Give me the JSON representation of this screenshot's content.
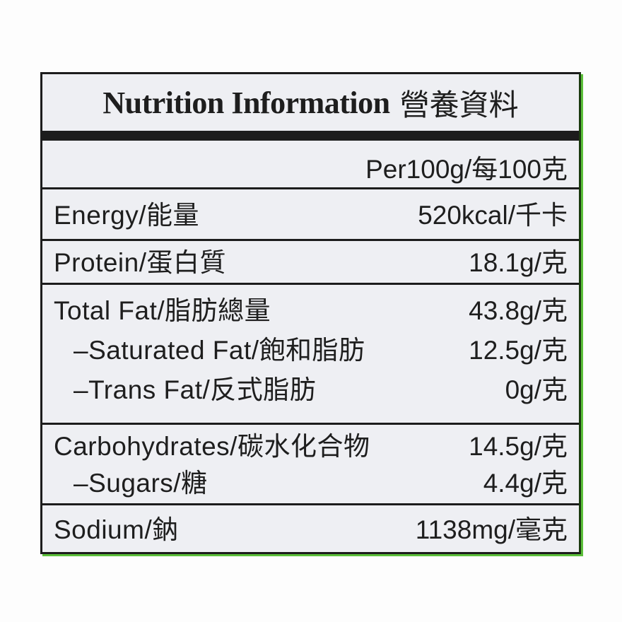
{
  "title": {
    "en": "Nutrition Information",
    "zh": "營養資料"
  },
  "serving": "Per100g/每100克",
  "rows": [
    {
      "name": "Energy/能量",
      "value": "520kcal/千卡"
    },
    {
      "name": "Protein/蛋白質",
      "value": "18.1g/克"
    },
    {
      "name": "Total Fat/脂肪總量",
      "value": "43.8g/克"
    },
    {
      "name": "–Saturated Fat/飽和脂肪",
      "value": "12.5g/克"
    },
    {
      "name": "–Trans Fat/反式脂肪",
      "value": "0g/克"
    },
    {
      "name": "Carbohydrates/碳水化合物",
      "value": "14.5g/克"
    },
    {
      "name": "–Sugars/糖",
      "value": "4.4g/克"
    },
    {
      "name": "Sodium/鈉",
      "value": "1138mg/毫克"
    }
  ],
  "colors": {
    "label_bg": "#eeeff3",
    "ink": "#1c1c1c",
    "package_green": "#5bbf3a"
  }
}
